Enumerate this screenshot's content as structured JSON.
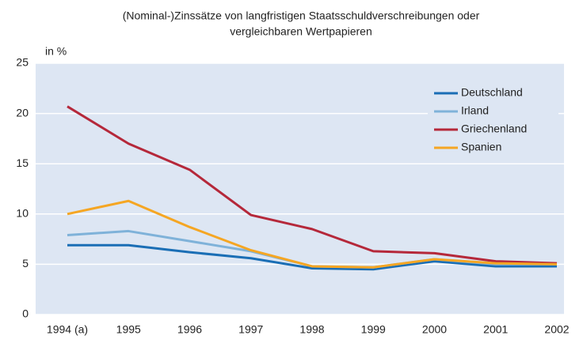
{
  "chart_data": {
    "type": "line",
    "title": [
      "(Nominal-)Zinssätze von langfristigen Staatsschuldverschreibungen oder",
      "vergleichbaren Wertpapieren"
    ],
    "y_label": "in %",
    "categories": [
      "1994 (a)",
      "1995",
      "1996",
      "1997",
      "1998",
      "1999",
      "2000",
      "2001",
      "2002"
    ],
    "series": [
      {
        "name": "Deutschland",
        "color": "#1a6eb5",
        "values": [
          6.9,
          6.9,
          6.2,
          5.6,
          4.6,
          4.5,
          5.3,
          4.8,
          4.8
        ]
      },
      {
        "name": "Irland",
        "color": "#7fb2d9",
        "values": [
          7.9,
          8.3,
          7.3,
          6.3,
          4.8,
          4.7,
          5.5,
          5.0,
          5.0
        ]
      },
      {
        "name": "Griechenland",
        "color": "#b5283a",
        "values": [
          20.7,
          17.0,
          14.4,
          9.9,
          8.5,
          6.3,
          6.1,
          5.3,
          5.1
        ]
      },
      {
        "name": "Spanien",
        "color": "#f5a623",
        "values": [
          10.0,
          11.3,
          8.7,
          6.4,
          4.8,
          4.7,
          5.5,
          5.1,
          5.0
        ]
      }
    ],
    "ylim": [
      0,
      25
    ],
    "yticks": [
      0,
      5,
      10,
      15,
      20,
      25
    ],
    "grid": true,
    "legend": "upper right"
  }
}
